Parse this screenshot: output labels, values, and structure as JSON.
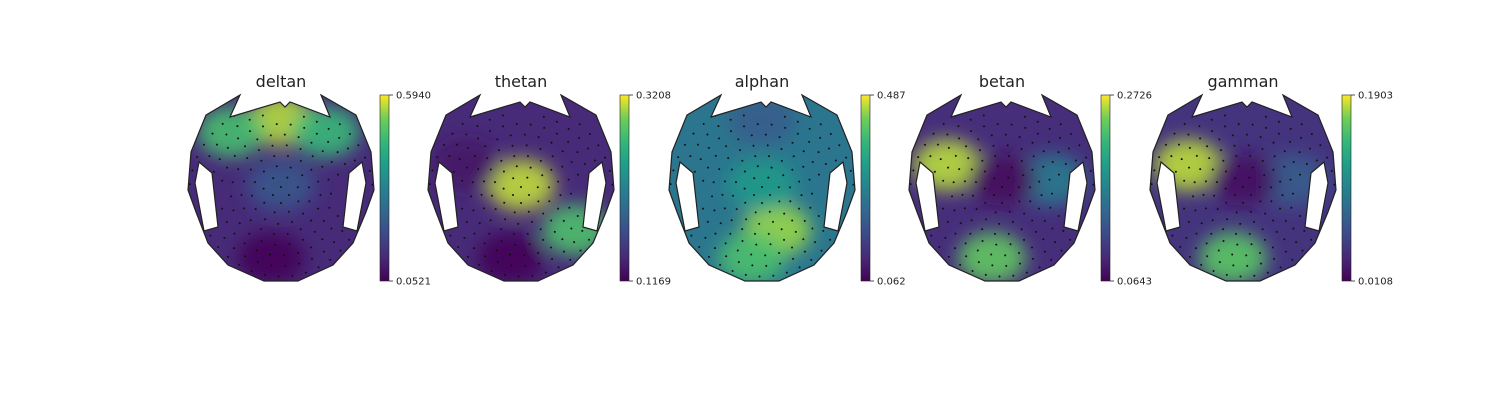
{
  "chart_data": [
    {
      "type": "heatmap",
      "title": "deltan",
      "colormap": "viridis",
      "clim": [
        0.0521,
        0.594
      ],
      "cbar_ticks": [
        "0.5940",
        "0.0521"
      ],
      "hotspots": [
        {
          "region": "frontal",
          "value": 0.56
        },
        {
          "region": "left-frontal",
          "value": 0.48
        },
        {
          "region": "right-frontal",
          "value": 0.46
        },
        {
          "region": "central",
          "value": 0.22
        },
        {
          "region": "occipital",
          "value": 0.06
        }
      ]
    },
    {
      "type": "heatmap",
      "title": "thetan",
      "colormap": "viridis",
      "clim": [
        0.1169,
        0.3208
      ],
      "cbar_ticks": [
        "0.3208",
        "0.1169"
      ],
      "hotspots": [
        {
          "region": "central",
          "value": 0.31
        },
        {
          "region": "right-parietal",
          "value": 0.28
        },
        {
          "region": "left-temporal",
          "value": 0.13
        },
        {
          "region": "occipital",
          "value": 0.12
        }
      ]
    },
    {
      "type": "heatmap",
      "title": "alphan",
      "colormap": "viridis",
      "clim": [
        0.062,
        0.487
      ],
      "cbar_ticks": [
        "0.487",
        "0.062"
      ],
      "hotspots": [
        {
          "region": "parietal",
          "value": 0.45
        },
        {
          "region": "occipital",
          "value": 0.4
        },
        {
          "region": "central",
          "value": 0.32
        },
        {
          "region": "frontal",
          "value": 0.2
        }
      ]
    },
    {
      "type": "heatmap",
      "title": "betan",
      "colormap": "viridis",
      "clim": [
        0.0643,
        0.2726
      ],
      "cbar_ticks": [
        "0.2726",
        "0.0643"
      ],
      "hotspots": [
        {
          "region": "left-temporal",
          "value": 0.26
        },
        {
          "region": "right-temporal",
          "value": 0.16
        },
        {
          "region": "occipital",
          "value": 0.24
        },
        {
          "region": "midline",
          "value": 0.07
        }
      ]
    },
    {
      "type": "heatmap",
      "title": "gamman",
      "colormap": "viridis",
      "clim": [
        0.0108,
        0.1903
      ],
      "cbar_ticks": [
        "0.1903",
        "0.0108"
      ],
      "hotspots": [
        {
          "region": "left-temporal",
          "value": 0.18
        },
        {
          "region": "occipital",
          "value": 0.16
        },
        {
          "region": "right-temporal",
          "value": 0.07
        },
        {
          "region": "midline",
          "value": 0.02
        }
      ]
    }
  ]
}
